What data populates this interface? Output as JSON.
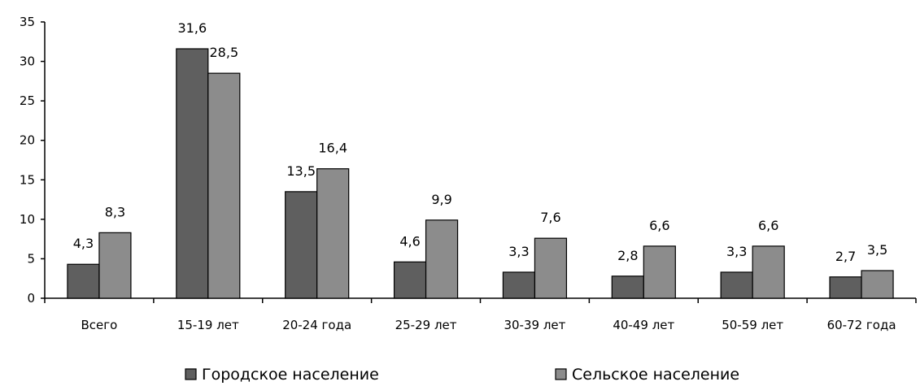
{
  "chart_data": {
    "type": "bar",
    "categories": [
      "Всего",
      "15-19 лет",
      "20-24 года",
      "25-29 лет",
      "30-39 лет",
      "40-49 лет",
      "50-59 лет",
      "60-72 года"
    ],
    "series": [
      {
        "name": "Городское население",
        "values": [
          4.3,
          31.6,
          13.5,
          4.6,
          3.3,
          2.8,
          3.3,
          2.7
        ],
        "labels": [
          "4,3",
          "31,6",
          "13,5",
          "4,6",
          "3,3",
          "2,8",
          "3,3",
          "2,7"
        ],
        "color": "#5f5f5f"
      },
      {
        "name": "Сельское население",
        "values": [
          8.3,
          28.5,
          16.4,
          9.9,
          7.6,
          6.6,
          6.6,
          3.5
        ],
        "labels": [
          "8,3",
          "28,5",
          "16,4",
          "9,9",
          "7,6",
          "6,6",
          "6,6",
          "3,5"
        ],
        "color": "#8c8c8c"
      }
    ],
    "ylim": [
      0,
      35
    ],
    "yticks": [
      0,
      5,
      10,
      15,
      20,
      25,
      30,
      35
    ],
    "grid": false,
    "legend_position": "bottom"
  }
}
